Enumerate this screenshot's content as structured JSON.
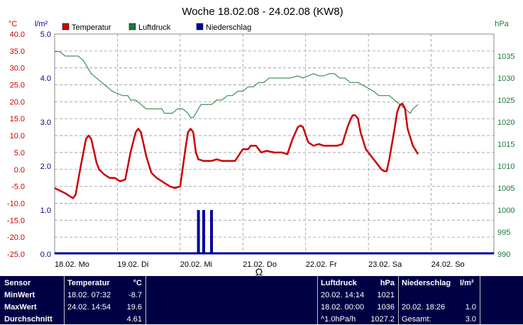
{
  "chart_data": {
    "type": "line",
    "title": "Woche 18.02.08 - 24.02.08 (KW8)",
    "legend": [
      "Temperatur",
      "Luftdruck",
      "Niederschlag"
    ],
    "units": {
      "temp": "°C",
      "rain": "l/m²",
      "pressure": "hPa"
    },
    "colors": {
      "temp": "#cc0000",
      "pressure": "#1a7a3a",
      "rain": "#000099",
      "grid": "#999999"
    },
    "temp_axis": {
      "ylim": [
        -25,
        40
      ],
      "ticks": [
        "40.0",
        "35.0",
        "30.0",
        "25.0",
        "20.0",
        "15.0",
        "10.0",
        "5.0",
        "0.0",
        "-5.0",
        "-10.0",
        "-15.0",
        "-20.0",
        "-25.0"
      ]
    },
    "rain_axis": {
      "ylim": [
        0,
        5
      ],
      "ticks": [
        "5.0",
        "4.0",
        "3.0",
        "2.0",
        "1.0",
        "0.0"
      ]
    },
    "pressure_axis": {
      "ylim": [
        990,
        1040
      ],
      "ticks": [
        "1035",
        "1030",
        "1025",
        "1020",
        "1015",
        "1010",
        "1005",
        "1000",
        "995",
        "990"
      ]
    },
    "x_ticks": [
      "18.02. Mo",
      "19.02. Di",
      "20.02. Mi",
      "21.02. Do",
      "22.02. Fr",
      "23.02. Sa",
      "24.02. So"
    ],
    "x_range_hours": [
      0,
      168
    ],
    "temperature": [
      [
        0,
        -5.5
      ],
      [
        4,
        -7
      ],
      [
        6,
        -8
      ],
      [
        7,
        -8.5
      ],
      [
        8,
        -7.5
      ],
      [
        10,
        1
      ],
      [
        12,
        9
      ],
      [
        13,
        10
      ],
      [
        14,
        9
      ],
      [
        16,
        2
      ],
      [
        17,
        0
      ],
      [
        19,
        -1.5
      ],
      [
        21,
        -2.5
      ],
      [
        23,
        -2.5
      ],
      [
        25,
        -3.5
      ],
      [
        27,
        -3
      ],
      [
        29,
        5
      ],
      [
        31,
        11
      ],
      [
        32,
        12
      ],
      [
        33,
        11
      ],
      [
        35,
        4
      ],
      [
        37,
        -1
      ],
      [
        39,
        -2.5
      ],
      [
        42,
        -4
      ],
      [
        44,
        -5
      ],
      [
        46,
        -5.5
      ],
      [
        48,
        -5
      ],
      [
        50,
        6
      ],
      [
        51,
        11
      ],
      [
        52,
        12
      ],
      [
        53,
        11
      ],
      [
        54,
        5
      ],
      [
        55,
        3
      ],
      [
        57,
        2.5
      ],
      [
        60,
        2.5
      ],
      [
        62,
        3
      ],
      [
        64,
        2.5
      ],
      [
        69,
        2.5
      ],
      [
        72,
        6
      ],
      [
        74,
        6
      ],
      [
        75,
        7
      ],
      [
        77,
        7
      ],
      [
        79,
        5
      ],
      [
        81,
        5.5
      ],
      [
        84,
        5
      ],
      [
        87,
        5
      ],
      [
        89,
        4.5
      ],
      [
        91,
        9
      ],
      [
        93,
        12.5
      ],
      [
        94,
        13
      ],
      [
        95,
        12.5
      ],
      [
        97,
        8
      ],
      [
        99,
        7
      ],
      [
        101,
        7.5
      ],
      [
        103,
        7
      ],
      [
        105,
        7
      ],
      [
        108,
        7
      ],
      [
        110,
        7.5
      ],
      [
        112,
        12.5
      ],
      [
        113,
        14.5
      ],
      [
        114,
        16
      ],
      [
        115,
        16
      ],
      [
        116,
        15
      ],
      [
        117,
        11
      ],
      [
        119,
        6
      ],
      [
        121,
        4
      ],
      [
        123,
        2
      ],
      [
        125,
        0
      ],
      [
        126,
        -0.5
      ],
      [
        127,
        -0.5
      ],
      [
        128,
        3
      ],
      [
        130,
        12
      ],
      [
        131,
        17
      ],
      [
        132,
        19
      ],
      [
        133,
        19.5
      ],
      [
        134,
        18
      ],
      [
        135,
        12
      ],
      [
        137,
        7
      ],
      [
        139,
        4.5
      ]
    ],
    "pressure": [
      [
        0,
        1036
      ],
      [
        2,
        1036
      ],
      [
        4,
        1035
      ],
      [
        9,
        1035
      ],
      [
        11,
        1034
      ],
      [
        13,
        1032
      ],
      [
        14,
        1031
      ],
      [
        16,
        1030
      ],
      [
        18,
        1029
      ],
      [
        20,
        1028
      ],
      [
        22,
        1027
      ],
      [
        24,
        1026.5
      ],
      [
        26,
        1026
      ],
      [
        28,
        1026
      ],
      [
        29,
        1025
      ],
      [
        31,
        1025
      ],
      [
        33,
        1024
      ],
      [
        35,
        1023
      ],
      [
        41,
        1023
      ],
      [
        42,
        1022
      ],
      [
        45,
        1022
      ],
      [
        47,
        1023
      ],
      [
        49,
        1023
      ],
      [
        50,
        1022.5
      ],
      [
        51,
        1022
      ],
      [
        52,
        1021
      ],
      [
        53,
        1021
      ],
      [
        54,
        1022
      ],
      [
        55,
        1023
      ],
      [
        56,
        1024
      ],
      [
        60,
        1024
      ],
      [
        62,
        1025
      ],
      [
        64,
        1025
      ],
      [
        66,
        1026
      ],
      [
        68,
        1026
      ],
      [
        70,
        1027
      ],
      [
        72,
        1027
      ],
      [
        74,
        1028
      ],
      [
        76,
        1028
      ],
      [
        78,
        1029
      ],
      [
        80,
        1029
      ],
      [
        82,
        1030
      ],
      [
        90,
        1030
      ],
      [
        93,
        1030.5
      ],
      [
        95,
        1030
      ],
      [
        97,
        1030.5
      ],
      [
        99,
        1031
      ],
      [
        101,
        1030.5
      ],
      [
        103,
        1030.5
      ],
      [
        105,
        1031
      ],
      [
        107,
        1031
      ],
      [
        109,
        1030
      ],
      [
        111,
        1030
      ],
      [
        113,
        1029
      ],
      [
        116,
        1029
      ],
      [
        119,
        1028
      ],
      [
        122,
        1027
      ],
      [
        124,
        1026
      ],
      [
        128,
        1026
      ],
      [
        130,
        1025
      ],
      [
        132,
        1024
      ],
      [
        134,
        1023
      ],
      [
        136,
        1022
      ],
      [
        137,
        1023
      ],
      [
        139,
        1024
      ]
    ],
    "precipitation": [
      [
        55,
        1.0
      ],
      [
        57,
        1.0
      ],
      [
        60,
        1.0
      ]
    ]
  },
  "stats": {
    "headers": {
      "sensor": "Sensor",
      "temp": "Temperatur",
      "temp_unit": "°C",
      "pressure": "Luftdruck",
      "pressure_unit": "hPa",
      "rain": "Niederschlag",
      "rain_unit": "l/m²"
    },
    "rows": [
      {
        "label": "MinWert",
        "temp_time": "18.02.  07:32",
        "temp_val": "-8.7",
        "pres_time": "20.02.  14:14",
        "pres_val": "1021",
        "rain_time": "",
        "rain_val": ""
      },
      {
        "label": "MaxWert",
        "temp_time": "24.02.  14:54",
        "temp_val": "19.6",
        "pres_time": "18.02.  00:00",
        "pres_val": "1036",
        "rain_time": "20.02.  18:26",
        "rain_val": "1.0"
      },
      {
        "label": "Durchschnitt",
        "temp_time": "",
        "temp_val": "4.61",
        "pres_time": "^1.0hPa/h",
        "pres_val": "1027.2",
        "rain_time": "Gesamt:",
        "rain_val": "3.0"
      }
    ]
  }
}
